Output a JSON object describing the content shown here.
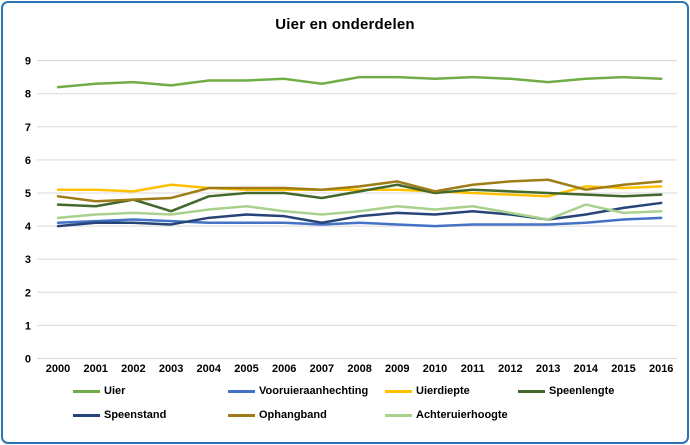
{
  "title": "Uier en onderdelen",
  "chart_data": {
    "type": "line",
    "title": "Uier en onderdelen",
    "x": [
      2000,
      2001,
      2002,
      2003,
      2004,
      2005,
      2006,
      2007,
      2008,
      2009,
      2010,
      2011,
      2012,
      2013,
      2014,
      2015,
      2016
    ],
    "ylim": [
      0,
      9
    ],
    "yticks": [
      0,
      1,
      2,
      3,
      4,
      5,
      6,
      7,
      8,
      9
    ],
    "grid": true,
    "legend_position": "bottom",
    "series": [
      {
        "name": "Uier",
        "color": "#70AD47",
        "values": [
          8.2,
          8.3,
          8.35,
          8.25,
          8.4,
          8.4,
          8.45,
          8.3,
          8.5,
          8.5,
          8.45,
          8.5,
          8.45,
          8.35,
          8.45,
          8.5,
          8.45
        ]
      },
      {
        "name": "Vooruieraanhechting",
        "color": "#4472C4",
        "values": [
          4.1,
          4.15,
          4.2,
          4.15,
          4.1,
          4.1,
          4.1,
          4.05,
          4.1,
          4.05,
          4.0,
          4.05,
          4.05,
          4.05,
          4.1,
          4.2,
          4.25
        ]
      },
      {
        "name": "Uierdiepte",
        "color": "#FFC000",
        "values": [
          5.1,
          5.1,
          5.05,
          5.25,
          5.15,
          5.1,
          5.1,
          5.1,
          5.1,
          5.1,
          5.05,
          5.0,
          4.95,
          4.9,
          5.2,
          5.15,
          5.2
        ]
      },
      {
        "name": "Speenlengte",
        "color": "#43682B",
        "values": [
          4.65,
          4.6,
          4.8,
          4.45,
          4.9,
          5.0,
          5.0,
          4.85,
          5.05,
          5.25,
          5.0,
          5.1,
          5.05,
          5.0,
          4.95,
          4.9,
          4.95
        ]
      },
      {
        "name": "Speenstand",
        "color": "#264478",
        "values": [
          4.0,
          4.1,
          4.1,
          4.05,
          4.25,
          4.35,
          4.3,
          4.1,
          4.3,
          4.4,
          4.35,
          4.45,
          4.35,
          4.2,
          4.35,
          4.55,
          4.7
        ]
      },
      {
        "name": "Ophangband",
        "color": "#9E7C17",
        "values": [
          4.9,
          4.75,
          4.8,
          4.85,
          5.15,
          5.15,
          5.15,
          5.1,
          5.2,
          5.35,
          5.05,
          5.25,
          5.35,
          5.4,
          5.1,
          5.25,
          5.35
        ]
      },
      {
        "name": "Achteruierhoogte",
        "color": "#A9D18E",
        "values": [
          4.25,
          4.35,
          4.4,
          4.35,
          4.5,
          4.6,
          4.45,
          4.35,
          4.45,
          4.6,
          4.5,
          4.6,
          4.4,
          4.2,
          4.65,
          4.4,
          4.45
        ]
      }
    ],
    "legend_rows": [
      [
        "Uier",
        "Vooruieraanhechting",
        "Uierdiepte",
        "Speenlengte"
      ],
      [
        "Speenstand",
        "Ophangband",
        "Achteruierhoogte"
      ]
    ]
  },
  "style": {
    "gridline_color": "#D9D9D9",
    "axis_text_color": "#000000",
    "border_color": "#2E74B5"
  }
}
